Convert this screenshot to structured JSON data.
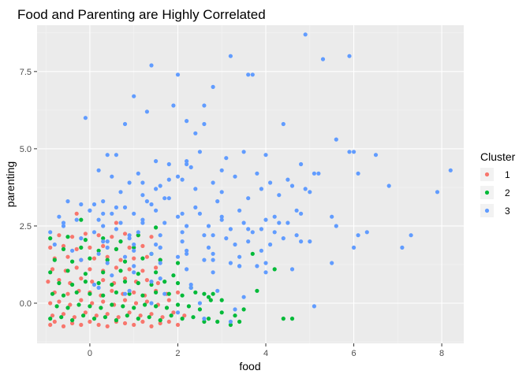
{
  "chart_data": {
    "type": "scatter",
    "title": "Food and Parenting are Highly Correlated",
    "xlabel": "food",
    "ylabel": "parenting",
    "xlim": [
      -1.2,
      8.5
    ],
    "ylim": [
      -1.3,
      9.0
    ],
    "x_ticks": [
      0,
      2,
      4,
      6,
      8
    ],
    "x_tick_labels": [
      "0",
      "2",
      "4",
      "6",
      "8"
    ],
    "y_ticks": [
      0,
      2.5,
      5,
      7.5
    ],
    "y_tick_labels": [
      "0.0",
      "2.5",
      "5.0",
      "7.5"
    ],
    "grid": true,
    "legend_position": "right",
    "legend": {
      "title": "Cluster",
      "entries": [
        {
          "label": "1",
          "color": "#F8766D"
        },
        {
          "label": "2",
          "color": "#00BA38"
        },
        {
          "label": "3",
          "color": "#619CFF"
        }
      ]
    },
    "series": [
      {
        "name": "1",
        "color": "#F8766D",
        "x": [
          -0.9,
          -0.8,
          -0.6,
          -0.4,
          -0.2,
          0.0,
          0.2,
          0.4,
          0.6,
          0.8,
          1.0,
          1.2,
          1.4,
          1.6,
          1.8,
          2.0,
          -0.85,
          -0.6,
          -0.35,
          -0.1,
          0.15,
          0.4,
          0.65,
          0.9,
          1.15,
          1.4,
          1.65,
          1.9,
          2.15,
          -0.9,
          -0.7,
          -0.45,
          -0.2,
          0.05,
          0.3,
          0.55,
          0.8,
          1.05,
          1.3,
          1.55,
          1.8,
          -0.8,
          -0.5,
          -0.25,
          0.0,
          0.25,
          0.5,
          0.75,
          1.0,
          1.25,
          1.5,
          1.75,
          2.0,
          -0.95,
          -0.7,
          -0.45,
          -0.2,
          0.05,
          0.3,
          0.55,
          0.8,
          1.05,
          1.3,
          1.55,
          -0.85,
          -0.55,
          -0.3,
          0.0,
          0.3,
          0.6,
          0.9,
          1.2,
          1.5,
          -0.8,
          -0.5,
          -0.2,
          0.1,
          0.4,
          0.7,
          1.0,
          1.3,
          1.6,
          -0.9,
          -0.6,
          -0.3,
          0.0,
          0.3,
          0.6,
          0.9,
          1.2,
          -0.7,
          -0.4,
          -0.1,
          0.2,
          0.5,
          0.8,
          1.1,
          1.4,
          -0.3,
          0.6
        ],
        "y": [
          -0.7,
          -0.6,
          -0.75,
          -0.65,
          -0.7,
          -0.6,
          -0.7,
          -0.75,
          -0.6,
          -0.65,
          -0.7,
          -0.6,
          -0.75,
          -0.65,
          -0.6,
          -0.7,
          -0.4,
          -0.35,
          -0.45,
          -0.3,
          -0.4,
          -0.35,
          -0.45,
          -0.3,
          -0.4,
          -0.35,
          -0.45,
          -0.3,
          -0.4,
          0.0,
          0.05,
          -0.05,
          0.1,
          0.0,
          0.05,
          -0.05,
          0.1,
          0.0,
          0.05,
          -0.05,
          0.1,
          0.35,
          0.3,
          0.4,
          0.35,
          0.25,
          0.4,
          0.3,
          0.35,
          0.25,
          0.4,
          0.3,
          0.35,
          0.7,
          0.75,
          0.65,
          0.8,
          0.7,
          0.75,
          0.65,
          0.8,
          0.7,
          0.75,
          0.65,
          1.1,
          1.05,
          1.15,
          1.1,
          1.05,
          1.15,
          1.1,
          1.05,
          1.15,
          1.45,
          1.5,
          1.4,
          1.45,
          1.5,
          1.4,
          1.45,
          1.5,
          1.4,
          1.8,
          1.85,
          1.75,
          1.8,
          1.85,
          1.75,
          1.8,
          1.85,
          2.2,
          2.15,
          2.25,
          2.2,
          2.15,
          2.25,
          2.2,
          2.15,
          2.9,
          2.6
        ]
      },
      {
        "name": "2",
        "color": "#00BA38",
        "x": [
          -0.9,
          -0.65,
          -0.4,
          -0.15,
          0.1,
          0.35,
          0.6,
          0.85,
          1.1,
          1.35,
          1.6,
          1.85,
          2.1,
          2.35,
          2.6,
          -0.75,
          -0.5,
          -0.25,
          0.0,
          0.25,
          0.5,
          0.75,
          1.0,
          1.25,
          1.5,
          1.75,
          2.0,
          2.25,
          2.5,
          2.75,
          3.0,
          -0.85,
          -0.6,
          -0.3,
          0.0,
          0.3,
          0.6,
          0.9,
          1.2,
          1.5,
          1.8,
          2.1,
          2.4,
          2.7,
          3.0,
          3.3,
          -0.7,
          -0.4,
          -0.1,
          0.2,
          0.5,
          0.8,
          1.1,
          1.4,
          1.7,
          2.0,
          2.3,
          2.6,
          -0.9,
          -0.5,
          -0.1,
          0.3,
          0.7,
          1.1,
          1.5,
          1.9,
          -0.8,
          -0.4,
          0.0,
          0.4,
          0.8,
          1.2,
          1.6,
          2.0,
          -0.6,
          -0.2,
          0.2,
          0.6,
          1.0,
          1.4,
          -0.9,
          -0.5,
          -0.1,
          0.3,
          0.7,
          1.1,
          2.9,
          3.2,
          3.5,
          3.8,
          2.7,
          4.4,
          4.6,
          3.4,
          2.8,
          1.5,
          -0.2,
          3.7,
          4.2
        ],
        "y": [
          -0.5,
          -0.45,
          -0.55,
          -0.4,
          -0.5,
          -0.45,
          -0.55,
          -0.4,
          -0.5,
          -0.45,
          -0.55,
          -0.4,
          -0.5,
          -0.45,
          -0.6,
          -0.1,
          -0.15,
          -0.05,
          -0.1,
          -0.15,
          -0.05,
          -0.1,
          -0.15,
          -0.05,
          -0.1,
          -0.15,
          -0.05,
          -0.1,
          -0.2,
          0.1,
          -0.3,
          0.3,
          0.25,
          0.35,
          0.3,
          0.25,
          0.35,
          0.3,
          0.25,
          0.35,
          0.3,
          0.25,
          0.35,
          0.2,
          0.1,
          -0.4,
          0.65,
          0.6,
          0.7,
          0.65,
          0.6,
          0.7,
          0.65,
          0.6,
          0.7,
          0.65,
          0.5,
          0.3,
          1.0,
          1.05,
          0.95,
          1.0,
          1.05,
          0.95,
          1.0,
          0.9,
          1.4,
          1.35,
          1.45,
          1.4,
          1.35,
          1.45,
          1.4,
          1.3,
          1.75,
          1.8,
          1.7,
          1.75,
          1.8,
          1.6,
          2.1,
          2.15,
          2.05,
          2.1,
          2.0,
          2.2,
          -0.6,
          -0.7,
          -0.2,
          0.4,
          -0.5,
          -0.5,
          -0.5,
          -0.6,
          0.3,
          2.45,
          2.7,
          1.6,
          1.1
        ]
      },
      {
        "name": "3",
        "color": "#619CFF",
        "x": [
          4.9,
          5.3,
          3.2,
          5.9,
          6.0,
          1.0,
          1.4,
          2.0,
          1.9,
          3.6,
          3.7,
          2.6,
          2.8,
          0.8,
          1.3,
          -0.1,
          4.4,
          2.6,
          2.4,
          2.2,
          3.5,
          5.6,
          3.8,
          6.0,
          6.5,
          4.0,
          6.1,
          4.8,
          0.4,
          0.6,
          1.5,
          2.2,
          3.0,
          3.1,
          1.8,
          2.5,
          4.5,
          5.0,
          5.2,
          6.8,
          7.9,
          8.2,
          2.0,
          2.3,
          0.2,
          0.5,
          1.1,
          0.9,
          1.6,
          2.1,
          2.8,
          3.3,
          3.9,
          4.1,
          4.6,
          4.9,
          5.5,
          6.3,
          7.3,
          7.1,
          6.1,
          5.9,
          5.1,
          4.3,
          3.6,
          2.9,
          1.7,
          1.2,
          0.7,
          0.3,
          -0.2,
          -0.5,
          -0.6,
          0.1,
          0.8,
          1.4,
          2.4,
          3.4,
          4.2,
          4.8,
          5.6,
          0.0,
          0.5,
          1.0,
          1.5,
          2.0,
          2.5,
          3.0,
          3.5,
          4.0,
          4.5,
          -0.3,
          0.2,
          0.7,
          1.2,
          1.7,
          2.2,
          2.7,
          3.2,
          3.7,
          4.2,
          4.7,
          0.1,
          0.6,
          1.1,
          1.6,
          2.1,
          2.6,
          3.1,
          3.6,
          4.1,
          0.3,
          0.9,
          1.5,
          2.1,
          2.7,
          3.3,
          3.9,
          0.4,
          1.0,
          1.6,
          2.2,
          2.8,
          3.4,
          -0.4,
          0.2,
          0.8,
          1.4,
          2.0,
          2.6,
          3.2,
          3.8,
          -0.2,
          0.4,
          1.0,
          1.6,
          2.2,
          2.8,
          3.4,
          4.0,
          4.6,
          -0.8,
          -0.2,
          0.4,
          1.0,
          1.6,
          2.2,
          2.8,
          3.4,
          4.0,
          5.0,
          5.5,
          4.3,
          4.7,
          3.0,
          2.4,
          1.8,
          1.3,
          0.6,
          0.0,
          -0.6,
          -0.9,
          0.3,
          1.2,
          2.1,
          3.0,
          3.9,
          4.8,
          5.1,
          0.5,
          1.4,
          2.3,
          3.2,
          -0.7,
          0.1,
          0.9,
          1.7,
          2.5,
          3.3,
          1.2,
          1.8,
          2.2,
          1.5,
          0.9,
          0.3,
          2.8,
          3.6,
          4.4,
          1.0,
          1.6,
          2.3,
          2.9,
          3.5,
          0.2,
          0.8,
          1.4,
          2.0,
          2.6
        ],
        "y": [
          8.7,
          7.9,
          8.0,
          8.0,
          1.8,
          6.7,
          7.7,
          7.4,
          6.4,
          7.4,
          7.4,
          6.4,
          7.0,
          5.8,
          6.2,
          6.0,
          5.8,
          5.8,
          5.5,
          5.9,
          4.9,
          5.3,
          4.2,
          4.9,
          4.8,
          4.8,
          4.2,
          4.5,
          4.8,
          4.8,
          4.6,
          4.6,
          4.3,
          4.7,
          4.5,
          4.9,
          4.0,
          3.6,
          4.2,
          3.8,
          3.6,
          4.3,
          4.1,
          4.4,
          4.3,
          4.1,
          4.2,
          3.9,
          3.8,
          4.0,
          3.9,
          4.1,
          3.7,
          3.9,
          3.8,
          3.7,
          2.8,
          2.3,
          2.2,
          1.8,
          2.2,
          4.9,
          4.2,
          3.5,
          3.4,
          3.3,
          3.4,
          3.5,
          3.6,
          3.3,
          3.2,
          3.3,
          2.6,
          3.2,
          3.1,
          3.2,
          3.1,
          3.0,
          2.8,
          2.9,
          2.5,
          3.0,
          2.9,
          2.9,
          3.0,
          2.8,
          2.9,
          2.7,
          2.6,
          2.7,
          2.6,
          2.7,
          2.7,
          2.6,
          2.7,
          2.6,
          2.5,
          2.5,
          2.4,
          2.3,
          2.3,
          2.2,
          2.3,
          2.4,
          2.3,
          2.2,
          2.3,
          2.2,
          2.1,
          2.0,
          1.9,
          2.0,
          2.1,
          1.9,
          2.0,
          1.8,
          1.9,
          1.7,
          1.8,
          1.7,
          1.8,
          1.7,
          1.6,
          1.5,
          1.7,
          1.6,
          1.5,
          1.6,
          1.5,
          1.4,
          1.3,
          1.2,
          1.4,
          1.3,
          1.2,
          1.3,
          1.1,
          1.0,
          1.2,
          1.3,
          1.1,
          1.9,
          2.1,
          2.0,
          1.9,
          1.8,
          1.6,
          1.4,
          1.2,
          1.0,
          2.0,
          1.3,
          2.6,
          3.0,
          3.6,
          3.7,
          3.4,
          3.3,
          3.1,
          3.0,
          2.5,
          2.3,
          2.5,
          2.6,
          2.9,
          2.8,
          2.4,
          2.0,
          -0.1,
          0.9,
          0.7,
          0.5,
          -0.6,
          2.8,
          0.6,
          0.4,
          0.3,
          0.0,
          -0.2,
          3.9,
          4.0,
          4.5,
          3.7,
          2.2,
          2.9,
          2.2,
          2.4,
          2.1,
          1.0,
          0.8,
          0.6,
          0.4,
          0.2,
          0.5,
          0.3,
          0.0,
          -0.3,
          -0.5
        ]
      }
    ]
  }
}
